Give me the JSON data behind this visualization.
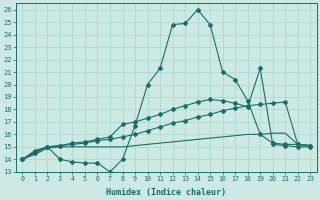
{
  "xlabel": "Humidex (Indice chaleur)",
  "background_color": "#cce9e4",
  "grid_color": "#b0d8d2",
  "line_color": "#1a6e64",
  "xlim": [
    -0.5,
    23.5
  ],
  "ylim": [
    13,
    26.5
  ],
  "xticks": [
    0,
    1,
    2,
    3,
    4,
    5,
    6,
    7,
    8,
    9,
    10,
    11,
    12,
    13,
    14,
    15,
    16,
    17,
    18,
    19,
    20,
    21,
    22,
    23
  ],
  "yticks": [
    13,
    14,
    15,
    16,
    17,
    18,
    19,
    20,
    21,
    22,
    23,
    24,
    25,
    26
  ],
  "line1_x": [
    0,
    1,
    2,
    3,
    4,
    5,
    6,
    7,
    8,
    9,
    10,
    11,
    12,
    13,
    14,
    15,
    16,
    17,
    18,
    19,
    20,
    21,
    22,
    23
  ],
  "line1_y": [
    14.0,
    14.7,
    15.0,
    14.0,
    13.8,
    13.7,
    13.7,
    13.0,
    14.0,
    16.7,
    20.0,
    21.3,
    24.8,
    24.9,
    26.0,
    24.8,
    21.0,
    20.4,
    18.7,
    16.0,
    15.3,
    15.2,
    15.2,
    15.1
  ],
  "line2_x": [
    0,
    1,
    2,
    3,
    4,
    5,
    6,
    7,
    8,
    9,
    10,
    11,
    12,
    13,
    14,
    15,
    16,
    17,
    18,
    19,
    20,
    21,
    22,
    23
  ],
  "line2_y": [
    14.0,
    14.6,
    15.0,
    15.1,
    15.3,
    15.4,
    15.6,
    15.8,
    16.8,
    17.0,
    17.3,
    17.6,
    18.0,
    18.3,
    18.6,
    18.8,
    18.7,
    18.5,
    18.2,
    21.3,
    15.2,
    15.1,
    15.0,
    15.0
  ],
  "line3_x": [
    0,
    1,
    2,
    3,
    4,
    5,
    6,
    7,
    8,
    9,
    10,
    11,
    12,
    13,
    14,
    15,
    16,
    17,
    18,
    19,
    20,
    21,
    22,
    23
  ],
  "line3_y": [
    14.0,
    14.5,
    15.0,
    15.1,
    15.2,
    15.3,
    15.5,
    15.6,
    15.8,
    16.0,
    16.3,
    16.6,
    16.9,
    17.1,
    17.4,
    17.6,
    17.9,
    18.1,
    18.3,
    18.4,
    18.5,
    18.6,
    15.2,
    15.1
  ],
  "line4_x": [
    0,
    1,
    2,
    3,
    4,
    5,
    6,
    7,
    8,
    9,
    10,
    11,
    12,
    13,
    14,
    15,
    16,
    17,
    18,
    19,
    20,
    21,
    22,
    23
  ],
  "line4_y": [
    14.0,
    14.4,
    14.9,
    15.0,
    15.0,
    15.0,
    15.0,
    15.0,
    15.0,
    15.1,
    15.2,
    15.3,
    15.4,
    15.5,
    15.6,
    15.7,
    15.8,
    15.9,
    16.0,
    16.0,
    16.1,
    16.1,
    15.2,
    15.1
  ]
}
